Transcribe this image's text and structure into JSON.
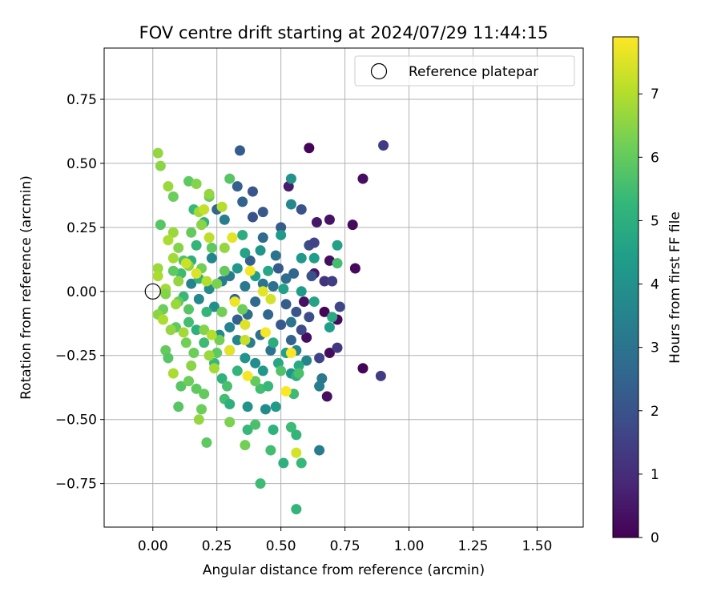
{
  "chart_data": {
    "type": "scatter",
    "title": "FOV centre drift starting at 2024/07/29 11:44:15",
    "xlabel": "Angular distance from reference (arcmin)",
    "ylabel": "Rotation from reference (arcmin)",
    "xlim": [
      -0.19,
      1.68
    ],
    "ylim": [
      -0.92,
      0.95
    ],
    "xticks": [
      0.0,
      0.25,
      0.5,
      0.75,
      1.0,
      1.25,
      1.5
    ],
    "xtick_labels": [
      "0.00",
      "0.25",
      "0.50",
      "0.75",
      "1.00",
      "1.25",
      "1.50"
    ],
    "yticks": [
      -0.75,
      -0.5,
      -0.25,
      0.0,
      0.25,
      0.5,
      0.75
    ],
    "ytick_labels": [
      "−0.75",
      "−0.50",
      "−0.25",
      "0.00",
      "0.25",
      "0.50",
      "0.75"
    ],
    "grid": true,
    "legend": {
      "position": "top-right",
      "entries": [
        "Reference platepar"
      ]
    },
    "reference_point": {
      "x": 0.0,
      "y": 0.0,
      "label": "Reference platepar"
    },
    "colorbar": {
      "label": "Hours from first FF file",
      "min": 0,
      "max": 7.9,
      "ticks": [
        0,
        1,
        2,
        3,
        4,
        5,
        6,
        7
      ],
      "tick_labels": [
        "0",
        "1",
        "2",
        "3",
        "4",
        "5",
        "6",
        "7"
      ],
      "colormap": "viridis",
      "colors": [
        "#440154",
        "#482878",
        "#3e4989",
        "#31688e",
        "#26828e",
        "#1f9e89",
        "#35b779",
        "#6ece58",
        "#b5de2b",
        "#fde725"
      ]
    },
    "points": [
      {
        "x": 0.61,
        "y": 0.56,
        "hours": 0.1
      },
      {
        "x": 0.9,
        "y": 0.57,
        "hours": 1.4
      },
      {
        "x": 0.82,
        "y": 0.44,
        "hours": 0.3
      },
      {
        "x": 0.53,
        "y": 0.41,
        "hours": 0.6
      },
      {
        "x": 0.69,
        "y": 0.28,
        "hours": 0.4
      },
      {
        "x": 0.78,
        "y": 0.26,
        "hours": 0.2
      },
      {
        "x": 0.64,
        "y": 0.27,
        "hours": 0.5
      },
      {
        "x": 0.69,
        "y": 0.12,
        "hours": 0.3
      },
      {
        "x": 0.79,
        "y": 0.09,
        "hours": 0.2
      },
      {
        "x": 0.63,
        "y": 0.07,
        "hours": 0.5
      },
      {
        "x": 0.59,
        "y": -0.04,
        "hours": 0.4
      },
      {
        "x": 0.67,
        "y": -0.08,
        "hours": 0.1
      },
      {
        "x": 0.72,
        "y": -0.11,
        "hours": 0.2
      },
      {
        "x": 0.6,
        "y": -0.18,
        "hours": 0.3
      },
      {
        "x": 0.69,
        "y": -0.24,
        "hours": 0.2
      },
      {
        "x": 0.68,
        "y": -0.41,
        "hours": 0.3
      },
      {
        "x": 0.82,
        "y": -0.3,
        "hours": 0.1
      },
      {
        "x": 0.89,
        "y": -0.33,
        "hours": 1.4
      },
      {
        "x": 0.65,
        "y": -0.26,
        "hours": 1.6
      },
      {
        "x": 0.72,
        "y": -0.22,
        "hours": 1.3
      },
      {
        "x": 0.73,
        "y": -0.06,
        "hours": 1.7
      },
      {
        "x": 0.67,
        "y": 0.04,
        "hours": 1.2
      },
      {
        "x": 0.7,
        "y": 0.04,
        "hours": 1.5
      },
      {
        "x": 0.61,
        "y": 0.18,
        "hours": 1.8
      },
      {
        "x": 0.63,
        "y": 0.19,
        "hours": 1.6
      },
      {
        "x": 0.58,
        "y": 0.32,
        "hours": 2.0
      },
      {
        "x": 0.34,
        "y": 0.55,
        "hours": 2.3
      },
      {
        "x": 0.33,
        "y": 0.41,
        "hours": 2.4
      },
      {
        "x": 0.39,
        "y": 0.39,
        "hours": 2.1
      },
      {
        "x": 0.35,
        "y": 0.35,
        "hours": 2.5
      },
      {
        "x": 0.43,
        "y": 0.31,
        "hours": 2.2
      },
      {
        "x": 0.39,
        "y": 0.29,
        "hours": 2.0
      },
      {
        "x": 0.25,
        "y": 0.32,
        "hours": 2.6
      },
      {
        "x": 0.5,
        "y": 0.25,
        "hours": 2.3
      },
      {
        "x": 0.43,
        "y": 0.21,
        "hours": 2.7
      },
      {
        "x": 0.48,
        "y": 0.14,
        "hours": 3.0
      },
      {
        "x": 0.38,
        "y": 0.12,
        "hours": 2.4
      },
      {
        "x": 0.49,
        "y": 0.09,
        "hours": 2.2
      },
      {
        "x": 0.55,
        "y": 0.07,
        "hours": 2.6
      },
      {
        "x": 0.62,
        "y": 0.06,
        "hours": 2.0
      },
      {
        "x": 0.52,
        "y": 0.05,
        "hours": 2.8
      },
      {
        "x": 0.43,
        "y": 0.03,
        "hours": 3.1
      },
      {
        "x": 0.47,
        "y": 0.02,
        "hours": 2.9
      },
      {
        "x": 0.36,
        "y": 0.02,
        "hours": 3.2
      },
      {
        "x": 0.32,
        "y": -0.03,
        "hours": 2.5
      },
      {
        "x": 0.4,
        "y": -0.04,
        "hours": 2.7
      },
      {
        "x": 0.52,
        "y": -0.05,
        "hours": 2.3
      },
      {
        "x": 0.56,
        "y": -0.08,
        "hours": 2.1
      },
      {
        "x": 0.61,
        "y": -0.1,
        "hours": 1.9
      },
      {
        "x": 0.45,
        "y": -0.09,
        "hours": 2.6
      },
      {
        "x": 0.37,
        "y": -0.09,
        "hours": 2.8
      },
      {
        "x": 0.33,
        "y": -0.11,
        "hours": 2.4
      },
      {
        "x": 0.5,
        "y": -0.13,
        "hours": 2.2
      },
      {
        "x": 0.58,
        "y": -0.15,
        "hours": 1.8
      },
      {
        "x": 0.54,
        "y": -0.19,
        "hours": 2.5
      },
      {
        "x": 0.42,
        "y": -0.17,
        "hours": 2.9
      },
      {
        "x": 0.38,
        "y": -0.2,
        "hours": 3.3
      },
      {
        "x": 0.46,
        "y": -0.23,
        "hours": 3.0
      },
      {
        "x": 0.66,
        "y": -0.34,
        "hours": 3.2
      },
      {
        "x": 0.65,
        "y": -0.37,
        "hours": 3.4
      },
      {
        "x": 0.65,
        "y": -0.62,
        "hours": 3.3
      },
      {
        "x": 0.56,
        "y": -0.23,
        "hours": 3.5
      },
      {
        "x": 0.6,
        "y": -0.27,
        "hours": 3.6
      },
      {
        "x": 0.54,
        "y": -0.12,
        "hours": 3.1
      },
      {
        "x": 0.28,
        "y": 0.28,
        "hours": 3.4
      },
      {
        "x": 0.23,
        "y": 0.13,
        "hours": 3.6
      },
      {
        "x": 0.3,
        "y": 0.06,
        "hours": 3.2
      },
      {
        "x": 0.15,
        "y": 0.03,
        "hours": 3.5
      },
      {
        "x": 0.22,
        "y": 0.01,
        "hours": 3.8
      },
      {
        "x": 0.27,
        "y": 0.04,
        "hours": 3.3
      },
      {
        "x": 0.18,
        "y": -0.03,
        "hours": 3.7
      },
      {
        "x": 0.24,
        "y": -0.06,
        "hours": 3.9
      },
      {
        "x": 0.3,
        "y": -0.14,
        "hours": 3.5
      },
      {
        "x": 0.26,
        "y": -0.17,
        "hours": 3.8
      },
      {
        "x": 0.33,
        "y": -0.19,
        "hours": 3.6
      },
      {
        "x": 0.3,
        "y": -0.23,
        "hours": 4.0
      },
      {
        "x": 0.36,
        "y": -0.26,
        "hours": 4.1
      },
      {
        "x": 0.4,
        "y": -0.28,
        "hours": 3.9
      },
      {
        "x": 0.43,
        "y": -0.31,
        "hours": 4.2
      },
      {
        "x": 0.37,
        "y": -0.45,
        "hours": 4.0
      },
      {
        "x": 0.44,
        "y": -0.46,
        "hours": 3.8
      },
      {
        "x": 0.48,
        "y": -0.45,
        "hours": 4.3
      },
      {
        "x": 0.54,
        "y": -0.32,
        "hours": 4.1
      },
      {
        "x": 0.54,
        "y": 0.44,
        "hours": 4.0
      },
      {
        "x": 0.54,
        "y": 0.34,
        "hours": 3.7
      },
      {
        "x": 0.58,
        "y": 0.13,
        "hours": 4.2
      },
      {
        "x": 0.63,
        "y": 0.13,
        "hours": 4.4
      },
      {
        "x": 0.5,
        "y": 0.22,
        "hours": 4.3
      },
      {
        "x": 0.72,
        "y": 0.18,
        "hours": 4.5
      },
      {
        "x": 0.42,
        "y": 0.16,
        "hours": 4.1
      },
      {
        "x": 0.36,
        "y": 0.15,
        "hours": 4.6
      },
      {
        "x": 0.4,
        "y": 0.06,
        "hours": 4.4
      },
      {
        "x": 0.33,
        "y": 0.09,
        "hours": 4.2
      },
      {
        "x": 0.45,
        "y": 0.08,
        "hours": 4.7
      },
      {
        "x": 0.51,
        "y": 0.01,
        "hours": 4.5
      },
      {
        "x": 0.58,
        "y": 0.0,
        "hours": 4.3
      },
      {
        "x": 0.63,
        "y": -0.04,
        "hours": 4.6
      },
      {
        "x": 0.69,
        "y": -0.14,
        "hours": 4.4
      },
      {
        "x": 0.7,
        "y": -0.1,
        "hours": 4.8
      },
      {
        "x": 0.47,
        "y": -0.2,
        "hours": 4.9
      },
      {
        "x": 0.49,
        "y": -0.28,
        "hours": 4.7
      },
      {
        "x": 0.52,
        "y": -0.24,
        "hours": 4.5
      },
      {
        "x": 0.56,
        "y": -0.33,
        "hours": 5.0
      },
      {
        "x": 0.57,
        "y": -0.29,
        "hours": 4.8
      },
      {
        "x": 0.35,
        "y": 0.22,
        "hours": 4.9
      },
      {
        "x": 0.2,
        "y": 0.27,
        "hours": 5.1
      },
      {
        "x": 0.16,
        "y": 0.32,
        "hours": 5.3
      },
      {
        "x": 0.17,
        "y": 0.18,
        "hours": 5.2
      },
      {
        "x": 0.15,
        "y": 0.12,
        "hours": 5.0
      },
      {
        "x": 0.11,
        "y": 0.07,
        "hours": 5.4
      },
      {
        "x": 0.18,
        "y": 0.05,
        "hours": 5.1
      },
      {
        "x": 0.12,
        "y": -0.02,
        "hours": 5.3
      },
      {
        "x": 0.21,
        "y": -0.08,
        "hours": 5.2
      },
      {
        "x": 0.14,
        "y": -0.12,
        "hours": 5.5
      },
      {
        "x": 0.17,
        "y": -0.15,
        "hours": 5.0
      },
      {
        "x": 0.2,
        "y": -0.2,
        "hours": 5.4
      },
      {
        "x": 0.24,
        "y": -0.28,
        "hours": 5.3
      },
      {
        "x": 0.27,
        "y": -0.34,
        "hours": 5.1
      },
      {
        "x": 0.29,
        "y": -0.37,
        "hours": 5.6
      },
      {
        "x": 0.33,
        "y": -0.31,
        "hours": 5.2
      },
      {
        "x": 0.28,
        "y": -0.42,
        "hours": 5.5
      },
      {
        "x": 0.3,
        "y": -0.44,
        "hours": 5.0
      },
      {
        "x": 0.37,
        "y": -0.54,
        "hours": 5.3
      },
      {
        "x": 0.47,
        "y": -0.54,
        "hours": 5.1
      },
      {
        "x": 0.54,
        "y": -0.53,
        "hours": 5.4
      },
      {
        "x": 0.56,
        "y": -0.56,
        "hours": 5.2
      },
      {
        "x": 0.51,
        "y": -0.67,
        "hours": 5.0
      },
      {
        "x": 0.58,
        "y": -0.67,
        "hours": 5.3
      },
      {
        "x": 0.46,
        "y": -0.62,
        "hours": 5.5
      },
      {
        "x": 0.56,
        "y": -0.85,
        "hours": 5.2
      },
      {
        "x": 0.42,
        "y": -0.75,
        "hours": 5.4
      },
      {
        "x": 0.4,
        "y": -0.52,
        "hours": 5.6
      },
      {
        "x": 0.42,
        "y": -0.38,
        "hours": 5.5
      },
      {
        "x": 0.45,
        "y": -0.37,
        "hours": 5.3
      },
      {
        "x": 0.5,
        "y": -0.31,
        "hours": 5.7
      },
      {
        "x": 0.55,
        "y": -0.4,
        "hours": 5.4
      },
      {
        "x": 0.57,
        "y": -0.32,
        "hours": 5.6
      },
      {
        "x": 0.72,
        "y": 0.11,
        "hours": 5.5
      },
      {
        "x": 0.14,
        "y": 0.43,
        "hours": 5.9
      },
      {
        "x": 0.3,
        "y": 0.44,
        "hours": 5.8
      },
      {
        "x": 0.22,
        "y": 0.37,
        "hours": 6.0
      },
      {
        "x": 0.08,
        "y": 0.37,
        "hours": 6.1
      },
      {
        "x": 0.03,
        "y": 0.26,
        "hours": 5.8
      },
      {
        "x": 0.15,
        "y": 0.23,
        "hours": 6.0
      },
      {
        "x": 0.23,
        "y": 0.17,
        "hours": 5.9
      },
      {
        "x": 0.12,
        "y": 0.12,
        "hours": 5.7
      },
      {
        "x": 0.19,
        "y": 0.09,
        "hours": 6.2
      },
      {
        "x": 0.08,
        "y": 0.08,
        "hours": 5.9
      },
      {
        "x": 0.1,
        "y": -0.04,
        "hours": 6.0
      },
      {
        "x": 0.14,
        "y": -0.07,
        "hours": 5.8
      },
      {
        "x": 0.04,
        "y": -0.07,
        "hours": 6.1
      },
      {
        "x": 0.09,
        "y": -0.14,
        "hours": 5.9
      },
      {
        "x": 0.13,
        "y": -0.2,
        "hours": 6.2
      },
      {
        "x": 0.05,
        "y": -0.23,
        "hours": 6.0
      },
      {
        "x": 0.06,
        "y": -0.26,
        "hours": 5.8
      },
      {
        "x": 0.16,
        "y": -0.24,
        "hours": 6.1
      },
      {
        "x": 0.25,
        "y": -0.24,
        "hours": 5.9
      },
      {
        "x": 0.26,
        "y": -0.19,
        "hours": 6.2
      },
      {
        "x": 0.11,
        "y": -0.37,
        "hours": 5.8
      },
      {
        "x": 0.14,
        "y": -0.35,
        "hours": 6.1
      },
      {
        "x": 0.17,
        "y": -0.38,
        "hours": 5.9
      },
      {
        "x": 0.2,
        "y": -0.4,
        "hours": 6.0
      },
      {
        "x": 0.1,
        "y": -0.45,
        "hours": 5.8
      },
      {
        "x": 0.19,
        "y": -0.46,
        "hours": 6.1
      },
      {
        "x": 0.21,
        "y": -0.59,
        "hours": 5.9
      },
      {
        "x": 0.36,
        "y": -0.6,
        "hours": 6.2
      },
      {
        "x": 0.3,
        "y": -0.51,
        "hours": 6.3
      },
      {
        "x": 0.4,
        "y": -0.35,
        "hours": 6.0
      },
      {
        "x": 0.27,
        "y": -0.08,
        "hours": 6.2
      },
      {
        "x": 0.35,
        "y": -0.07,
        "hours": 6.1
      },
      {
        "x": 0.25,
        "y": 0.03,
        "hours": 6.3
      },
      {
        "x": 0.28,
        "y": 0.08,
        "hours": 6.0
      },
      {
        "x": 0.02,
        "y": 0.54,
        "hours": 6.6
      },
      {
        "x": 0.03,
        "y": 0.49,
        "hours": 6.5
      },
      {
        "x": 0.06,
        "y": 0.41,
        "hours": 6.7
      },
      {
        "x": 0.17,
        "y": 0.42,
        "hours": 6.4
      },
      {
        "x": 0.22,
        "y": 0.38,
        "hours": 6.6
      },
      {
        "x": 0.18,
        "y": 0.31,
        "hours": 6.8
      },
      {
        "x": 0.19,
        "y": 0.26,
        "hours": 6.5
      },
      {
        "x": 0.08,
        "y": 0.23,
        "hours": 6.7
      },
      {
        "x": 0.06,
        "y": 0.2,
        "hours": 6.9
      },
      {
        "x": 0.1,
        "y": 0.17,
        "hours": 6.4
      },
      {
        "x": 0.28,
        "y": 0.17,
        "hours": 6.6
      },
      {
        "x": 0.08,
        "y": 0.13,
        "hours": 6.8
      },
      {
        "x": 0.14,
        "y": 0.1,
        "hours": 6.5
      },
      {
        "x": 0.02,
        "y": 0.09,
        "hours": 6.7
      },
      {
        "x": 0.02,
        "y": 0.06,
        "hours": 6.9
      },
      {
        "x": 0.1,
        "y": 0.04,
        "hours": 6.6
      },
      {
        "x": 0.05,
        "y": 0.01,
        "hours": 6.8
      },
      {
        "x": 0.05,
        "y": -0.01,
        "hours": 6.4
      },
      {
        "x": 0.09,
        "y": -0.05,
        "hours": 6.7
      },
      {
        "x": 0.02,
        "y": -0.09,
        "hours": 6.5
      },
      {
        "x": 0.04,
        "y": -0.11,
        "hours": 6.9
      },
      {
        "x": 0.07,
        "y": -0.15,
        "hours": 6.6
      },
      {
        "x": 0.12,
        "y": -0.16,
        "hours": 6.8
      },
      {
        "x": 0.2,
        "y": -0.15,
        "hours": 6.4
      },
      {
        "x": 0.22,
        "y": -0.25,
        "hours": 6.7
      },
      {
        "x": 0.08,
        "y": -0.32,
        "hours": 6.9
      },
      {
        "x": 0.15,
        "y": -0.29,
        "hours": 6.5
      },
      {
        "x": 0.24,
        "y": -0.3,
        "hours": 6.8
      },
      {
        "x": 0.18,
        "y": -0.5,
        "hours": 6.6
      },
      {
        "x": 0.27,
        "y": 0.33,
        "hours": 7.0
      },
      {
        "x": 0.2,
        "y": 0.32,
        "hours": 7.2
      },
      {
        "x": 0.31,
        "y": 0.21,
        "hours": 7.6
      },
      {
        "x": 0.22,
        "y": 0.21,
        "hours": 7.1
      },
      {
        "x": 0.13,
        "y": 0.11,
        "hours": 7.3
      },
      {
        "x": 0.17,
        "y": 0.07,
        "hours": 7.5
      },
      {
        "x": 0.38,
        "y": 0.08,
        "hours": 7.8
      },
      {
        "x": 0.21,
        "y": 0.04,
        "hours": 7.0
      },
      {
        "x": 0.43,
        "y": 0.0,
        "hours": 7.6
      },
      {
        "x": 0.46,
        "y": -0.03,
        "hours": 7.4
      },
      {
        "x": 0.32,
        "y": -0.04,
        "hours": 7.7
      },
      {
        "x": 0.36,
        "y": -0.13,
        "hours": 7.5
      },
      {
        "x": 0.44,
        "y": -0.16,
        "hours": 7.8
      },
      {
        "x": 0.36,
        "y": -0.19,
        "hours": 7.2
      },
      {
        "x": 0.23,
        "y": -0.17,
        "hours": 7.0
      },
      {
        "x": 0.3,
        "y": -0.23,
        "hours": 7.6
      },
      {
        "x": 0.54,
        "y": -0.24,
        "hours": 7.9
      },
      {
        "x": 0.37,
        "y": -0.33,
        "hours": 7.8
      },
      {
        "x": 0.52,
        "y": -0.39,
        "hours": 7.9
      },
      {
        "x": 0.56,
        "y": -0.63,
        "hours": 7.4
      }
    ]
  }
}
